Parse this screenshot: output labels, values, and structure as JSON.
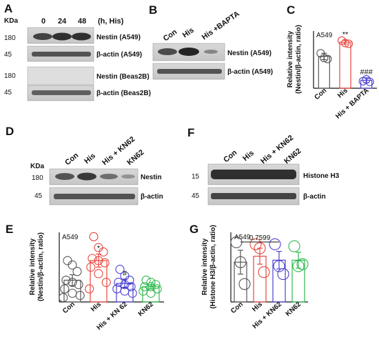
{
  "panels": {
    "A": {
      "letter": "A",
      "kda": "KDa",
      "lanes": [
        "0",
        "24",
        "48"
      ],
      "condition": "(h, His)",
      "blots": [
        {
          "mw": "180",
          "label": "Nestin (A549)"
        },
        {
          "mw": "45",
          "label": "β-actin (A549)"
        },
        {
          "mw": "180",
          "label": "Nestin (Beas2B)"
        },
        {
          "mw": "45",
          "label": "β-actin (Beas2B)"
        }
      ]
    },
    "B": {
      "letter": "B",
      "lanes": [
        "Con",
        "His",
        "His +BAPTA"
      ],
      "blots": [
        {
          "label": "Nestin (A549)"
        },
        {
          "label": "β-actin (A549)"
        }
      ]
    },
    "D": {
      "letter": "D",
      "kda": "KDa",
      "lanes": [
        "Con",
        "His",
        "His + KN62",
        "KN62"
      ],
      "blots": [
        {
          "mw": "180",
          "label": "Nestin"
        },
        {
          "mw": "45",
          "label": "β-actin"
        }
      ]
    },
    "F": {
      "letter": "F",
      "lanes": [
        "Con",
        "His",
        "His + KN62",
        "KN62"
      ],
      "blots": [
        {
          "mw": "15",
          "label": "Histone H3"
        },
        {
          "mw": "45",
          "label": "β-actin"
        }
      ]
    },
    "C": {
      "letter": "C"
    },
    "E": {
      "letter": "E"
    },
    "G": {
      "letter": "G"
    }
  },
  "chart_data": [
    {
      "panel": "C",
      "type": "bar",
      "cell_line": "A549",
      "ylabel": "Relative intensity\n(Nestin/β-actin, ratio)",
      "categories": [
        "Con",
        "His",
        "His + BAPTA"
      ],
      "values": [
        1.0,
        1.45,
        0.25
      ],
      "errors": [
        0.1,
        0.06,
        0.08
      ],
      "points": [
        [
          1.1,
          0.95,
          0.92
        ],
        [
          1.5,
          1.42,
          1.4
        ],
        [
          0.22,
          0.28,
          0.2
        ]
      ],
      "colors": [
        "#555555",
        "#e8433a",
        "#4a3fd0"
      ],
      "significance": [
        "",
        "**",
        "###"
      ],
      "ylim": [
        0,
        1.8
      ]
    },
    {
      "panel": "E",
      "type": "bar",
      "cell_line": "A549",
      "ylabel": "Relative intensity\n(Nestin/β-actin, ratio)",
      "categories": [
        "Con",
        "His",
        "His + KN 62",
        "KN62"
      ],
      "values": [
        1.0,
        1.9,
        0.85,
        0.7
      ],
      "errors": [
        0.25,
        0.3,
        0.2,
        0.1
      ],
      "points": [
        [
          1.9,
          1.7,
          1.4,
          1.0,
          0.9,
          0.8,
          0.6,
          0.4,
          0.3,
          0.2
        ],
        [
          3.0,
          2.5,
          2.3,
          2.0,
          1.9,
          1.8,
          1.6,
          1.3,
          0.9,
          0.6
        ],
        [
          1.5,
          1.2,
          1.0,
          0.9,
          0.8,
          0.7,
          0.6,
          0.5,
          0.4
        ],
        [
          1.0,
          0.9,
          0.8,
          0.7,
          0.7,
          0.6,
          0.5,
          0.4
        ]
      ],
      "colors": [
        "#555555",
        "#e8433a",
        "#4a3fd0",
        "#2db84d"
      ],
      "significance": [
        "",
        "*",
        "#",
        ""
      ],
      "ylim": [
        0,
        3.2
      ]
    },
    {
      "panel": "G",
      "type": "bar",
      "cell_line": "A549",
      "ylabel": "Relative intensity\n(Histone H3/β-actin, ratio)",
      "categories": [
        "Con",
        "His",
        "His + KN62",
        "KN62"
      ],
      "values": [
        1.0,
        1.15,
        1.05,
        1.05
      ],
      "errors": [
        0.3,
        0.2,
        0.22,
        0.2
      ],
      "points": [
        [
          1.5,
          1.0,
          0.45
        ],
        [
          1.45,
          1.35,
          0.75
        ],
        [
          1.45,
          0.9,
          0.7
        ],
        [
          1.4,
          0.9,
          0.95
        ]
      ],
      "colors": [
        "#555555",
        "#e8433a",
        "#4a3fd0",
        "#2db84d"
      ],
      "pvalue": "0.7599",
      "ylim": [
        0,
        1.75
      ]
    }
  ]
}
